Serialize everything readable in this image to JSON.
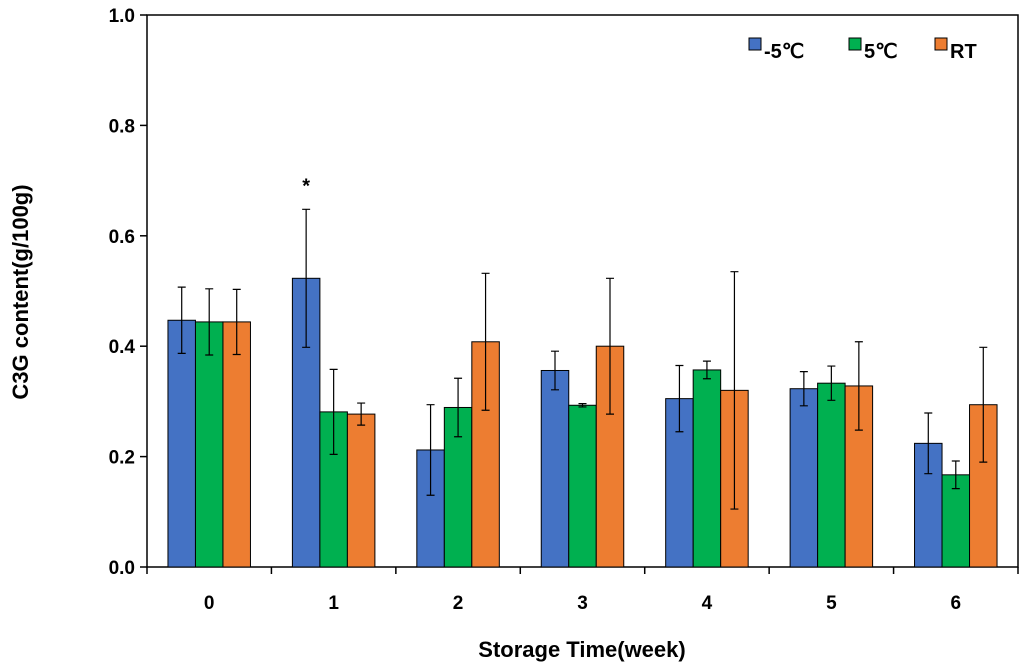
{
  "chart_data": {
    "type": "bar",
    "title": "",
    "xlabel": "Storage Time(week)",
    "ylabel": "C3G content(g/100g)",
    "ylim": [
      0,
      1.0
    ],
    "yticks": [
      "0.0",
      "0.2",
      "0.4",
      "0.6",
      "0.8",
      "1.0"
    ],
    "categories": [
      "0",
      "1",
      "2",
      "3",
      "4",
      "5",
      "6"
    ],
    "legend_position": "top-right",
    "series": [
      {
        "name": "-5℃",
        "color": "#4472c4",
        "values": [
          0.447,
          0.523,
          0.212,
          0.356,
          0.305,
          0.323,
          0.224
        ],
        "errors": [
          0.06,
          0.125,
          0.082,
          0.035,
          0.06,
          0.031,
          0.055
        ]
      },
      {
        "name": "5℃",
        "color": "#00b050",
        "values": [
          0.444,
          0.281,
          0.289,
          0.293,
          0.357,
          0.333,
          0.167
        ],
        "errors": [
          0.06,
          0.077,
          0.053,
          0.003,
          0.016,
          0.031,
          0.025
        ]
      },
      {
        "name": "RT",
        "color": "#ed7d31",
        "values": [
          0.444,
          0.277,
          0.408,
          0.4,
          0.32,
          0.328,
          0.294
        ],
        "errors": [
          0.059,
          0.02,
          0.124,
          0.123,
          0.215,
          0.08,
          0.104
        ]
      }
    ],
    "annotations": [
      {
        "text": "*",
        "category": "1",
        "series": "-5℃"
      }
    ]
  }
}
